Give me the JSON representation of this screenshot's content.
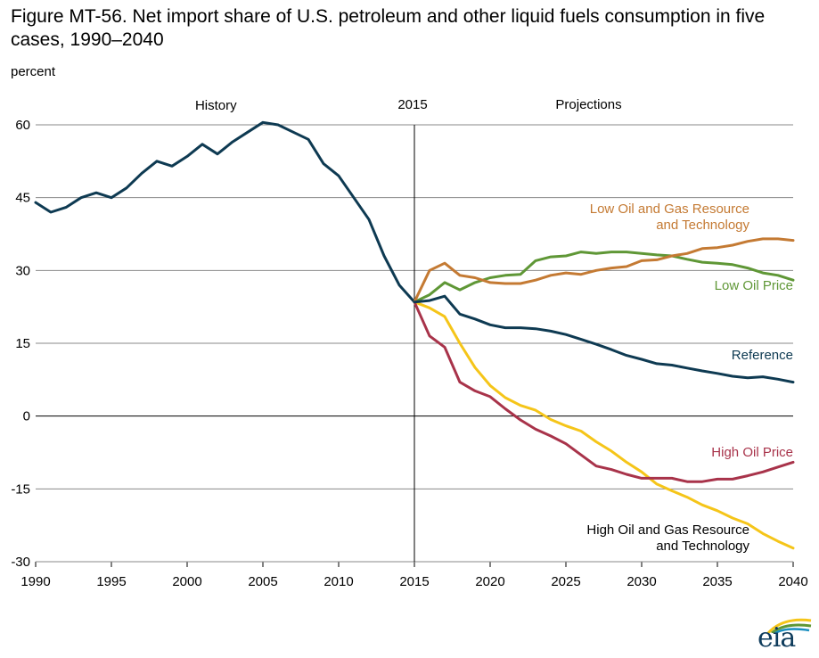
{
  "chart_data": {
    "type": "line",
    "title": "Figure MT-56. Net import share of U.S. petroleum and other liquid fuels consumption in five cases, 1990–2040",
    "xlabel": "",
    "ylabel": "percent",
    "xlim": [
      1990,
      2040
    ],
    "ylim": [
      -30,
      60
    ],
    "x_ticks": [
      "1990",
      "1995",
      "2000",
      "2005",
      "2010",
      "2015",
      "2020",
      "2025",
      "2030",
      "2035",
      "2040"
    ],
    "y_ticks": [
      "60",
      "45",
      "30",
      "15",
      "0",
      "-15",
      "-30"
    ],
    "grid": "horizontal",
    "divider": {
      "x": 2015,
      "label": "2015"
    },
    "segments": {
      "history": "History",
      "projections": "Projections"
    },
    "history": {
      "name": "History",
      "color": "#0e3a52",
      "x": [
        1990,
        1991,
        1992,
        1993,
        1994,
        1995,
        1996,
        1997,
        1998,
        1999,
        2000,
        2001,
        2002,
        2003,
        2004,
        2005,
        2006,
        2007,
        2008,
        2009,
        2010,
        2011,
        2012,
        2013,
        2014,
        2015
      ],
      "values": [
        44,
        42,
        43,
        45,
        46,
        45,
        47,
        50,
        52.5,
        51.5,
        53.5,
        56,
        54,
        56.5,
        58.5,
        60.5,
        60,
        58.5,
        57,
        52,
        49.5,
        45,
        40.5,
        33,
        27,
        23.5
      ]
    },
    "series": [
      {
        "name": "Low Oil and Gas Resource and Technology",
        "label_lines": [
          "Low Oil and Gas Resource",
          "and Technology"
        ],
        "color": "#c47a33",
        "x": [
          2015,
          2016,
          2017,
          2018,
          2019,
          2020,
          2021,
          2022,
          2023,
          2024,
          2025,
          2026,
          2027,
          2028,
          2029,
          2030,
          2031,
          2032,
          2033,
          2034,
          2035,
          2036,
          2037,
          2038,
          2039,
          2040
        ],
        "values": [
          23.5,
          30,
          31.5,
          29,
          28.5,
          27.5,
          27.3,
          27.3,
          28,
          29,
          29.5,
          29.2,
          30,
          30.5,
          30.8,
          32,
          32.2,
          33,
          33.5,
          34.5,
          34.7,
          35.2,
          36,
          36.5,
          36.5,
          36.2
        ]
      },
      {
        "name": "Low Oil Price",
        "label_lines": [
          "Low Oil Price"
        ],
        "color": "#5f9736",
        "x": [
          2015,
          2016,
          2017,
          2018,
          2019,
          2020,
          2021,
          2022,
          2023,
          2024,
          2025,
          2026,
          2027,
          2028,
          2029,
          2030,
          2031,
          2032,
          2033,
          2034,
          2035,
          2036,
          2037,
          2038,
          2039,
          2040
        ],
        "values": [
          23.5,
          25,
          27.5,
          26,
          27.5,
          28.5,
          29,
          29.2,
          32,
          32.8,
          33,
          33.8,
          33.5,
          33.8,
          33.8,
          33.5,
          33.2,
          33,
          32.3,
          31.7,
          31.5,
          31.2,
          30.5,
          29.5,
          29,
          28
        ]
      },
      {
        "name": "Reference",
        "label_lines": [
          "Reference"
        ],
        "color": "#0e3a52",
        "x": [
          2015,
          2016,
          2017,
          2018,
          2019,
          2020,
          2021,
          2022,
          2023,
          2024,
          2025,
          2026,
          2027,
          2028,
          2029,
          2030,
          2031,
          2032,
          2033,
          2034,
          2035,
          2036,
          2037,
          2038,
          2039,
          2040
        ],
        "values": [
          23.5,
          23.8,
          24.7,
          21,
          20,
          18.8,
          18.2,
          18.2,
          18,
          17.5,
          16.8,
          15.8,
          14.8,
          13.7,
          12.5,
          11.7,
          10.8,
          10.5,
          9.9,
          9.3,
          8.8,
          8.2,
          7.9,
          8.1,
          7.6,
          7
        ]
      },
      {
        "name": "High Oil Price",
        "label_lines": [
          "High Oil Price"
        ],
        "color": "#a8334a",
        "x": [
          2015,
          2016,
          2017,
          2018,
          2019,
          2020,
          2021,
          2022,
          2023,
          2024,
          2025,
          2026,
          2027,
          2028,
          2029,
          2030,
          2031,
          2032,
          2033,
          2034,
          2035,
          2036,
          2037,
          2038,
          2039,
          2040
        ],
        "values": [
          23.5,
          16.5,
          14.2,
          7,
          5.2,
          4,
          1.5,
          -0.8,
          -2.7,
          -4.1,
          -5.7,
          -8,
          -10.3,
          -11,
          -12,
          -12.8,
          -12.8,
          -12.8,
          -13.5,
          -13.5,
          -13,
          -13,
          -12.3,
          -11.5,
          -10.5,
          -9.5
        ]
      },
      {
        "name": "High Oil and Gas Resource and Technology",
        "label_lines": [
          "High Oil and Gas Resource",
          "and Technology"
        ],
        "color": "#f5c519",
        "x": [
          2015,
          2016,
          2017,
          2018,
          2019,
          2020,
          2021,
          2022,
          2023,
          2024,
          2025,
          2026,
          2027,
          2028,
          2029,
          2030,
          2031,
          2032,
          2033,
          2034,
          2035,
          2036,
          2037,
          2038,
          2039,
          2040
        ],
        "values": [
          23.5,
          22.3,
          20.5,
          15,
          10,
          6.3,
          3.8,
          2.2,
          1.2,
          -0.7,
          -2,
          -3.1,
          -5.3,
          -7.2,
          -9.5,
          -11.5,
          -14,
          -15.4,
          -16.7,
          -18.3,
          -19.5,
          -21,
          -22.2,
          -24.2,
          -25.8,
          -27.2
        ]
      }
    ]
  },
  "logo": {
    "text": "eia"
  }
}
